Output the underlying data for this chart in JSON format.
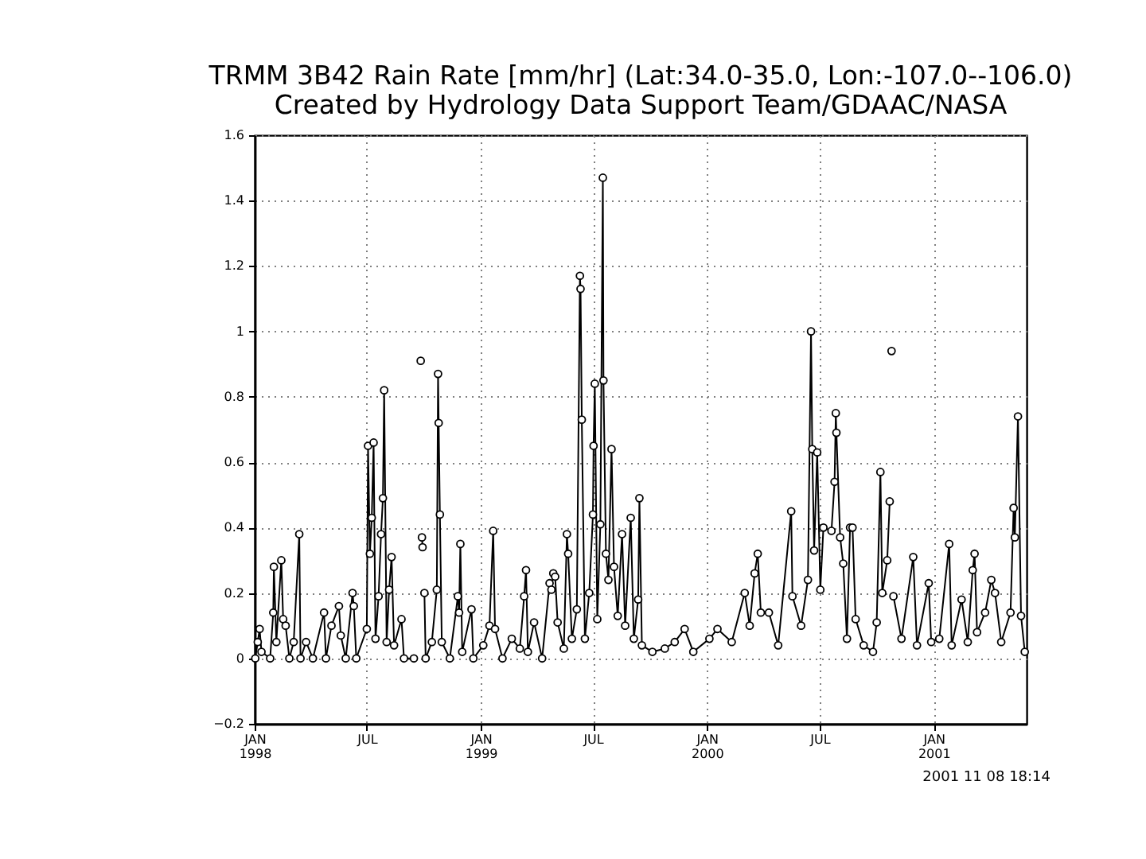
{
  "chart_data": {
    "type": "line",
    "title": "TRMM 3B42 Rain Rate [mm/hr] (Lat:34.0-35.0, Lon:-107.0--106.0)",
    "subtitle": "Created by Hydrology Data Support Team/GDAAC/NASA",
    "annotations": [
      "2001 11 08 18:14"
    ],
    "x": [
      "1998-01-02",
      "1998-01-06",
      "1998-01-09",
      "1998-01-12",
      "1998-01-26",
      "1998-01-31",
      "1998-02-01",
      "1998-02-05",
      "1998-02-13",
      "1998-02-16",
      "1998-02-20",
      "1998-02-26",
      "1998-03-05",
      "1998-03-14",
      "1998-03-16",
      "1998-03-25",
      "1998-04-05",
      "1998-04-23",
      "1998-04-26",
      "1998-05-05",
      "1998-05-17",
      "1998-05-20",
      "1998-05-28",
      "1998-06-08",
      "1998-06-10",
      "1998-06-14",
      "1998-07-01",
      "1998-07-03",
      "1998-07-06",
      "1998-07-09",
      "1998-07-12",
      "1998-07-15",
      "1998-07-20",
      "1998-07-24",
      "1998-07-27",
      "1998-07-29",
      "1998-08-02",
      "1998-08-06",
      "1998-08-10",
      "1998-08-14",
      "1998-08-26",
      "1998-08-30",
      "1998-09-15",
      "1998-09-24",
      "1998-09-26",
      "1998-09-27",
      "1998-09-28",
      "1998-09-29",
      "1998-09-30",
      "1998-10-02",
      "1998-10-04",
      "1998-10-14",
      "1998-10-22",
      "1998-10-24",
      "1998-10-25",
      "1998-10-27",
      "1998-10-30",
      "1998-11-12",
      "1998-11-25",
      "1998-11-27",
      "1998-11-29",
      "1998-12-02",
      "1998-12-17",
      "1998-12-20",
      "1999-01-05",
      "1999-01-15",
      "1999-01-21",
      "1999-01-24",
      "1999-02-05",
      "1999-02-20",
      "1999-03-05",
      "1999-03-12",
      "1999-03-15",
      "1999-03-18",
      "1999-03-28",
      "1999-04-10",
      "1999-04-22",
      "1999-04-25",
      "1999-04-28",
      "1999-05-01",
      "1999-05-05",
      "1999-05-15",
      "1999-05-20",
      "1999-05-22",
      "1999-05-28",
      "1999-06-05",
      "1999-06-10",
      "1999-06-11",
      "1999-06-13",
      "1999-06-18",
      "1999-06-25",
      "1999-07-01",
      "1999-07-02",
      "1999-07-04",
      "1999-07-08",
      "1999-07-13",
      "1999-07-17",
      "1999-07-18",
      "1999-07-22",
      "1999-07-26",
      "1999-07-31",
      "1999-08-04",
      "1999-08-10",
      "1999-08-17",
      "1999-08-22",
      "1999-08-31",
      "1999-09-05",
      "1999-09-12",
      "1999-09-14",
      "1999-09-18",
      "1999-10-05",
      "1999-10-25",
      "1999-11-10",
      "1999-11-26",
      "1999-12-10",
      "2000-01-05",
      "2000-01-18",
      "2000-02-10",
      "2000-03-02",
      "2000-03-10",
      "2000-03-18",
      "2000-03-23",
      "2000-03-28",
      "2000-04-10",
      "2000-04-25",
      "2000-05-16",
      "2000-05-18",
      "2000-06-01",
      "2000-06-12",
      "2000-06-17",
      "2000-06-19",
      "2000-06-22",
      "2000-06-27",
      "2000-07-02",
      "2000-07-07",
      "2000-07-20",
      "2000-07-25",
      "2000-07-27",
      "2000-07-28",
      "2000-08-03",
      "2000-08-08",
      "2000-08-14",
      "2000-08-19",
      "2000-08-23",
      "2000-08-28",
      "2000-09-10",
      "2000-09-25",
      "2000-10-01",
      "2000-10-07",
      "2000-10-10",
      "2000-10-18",
      "2000-10-22",
      "2000-10-24",
      "2000-10-25",
      "2000-10-26",
      "2000-10-28",
      "2000-11-10",
      "2000-11-29",
      "2000-12-05",
      "2000-12-24",
      "2000-12-28",
      "2001-01-10",
      "2001-01-26",
      "2001-01-30",
      "2001-02-15",
      "2001-02-25",
      "2001-03-05",
      "2001-03-08",
      "2001-03-12",
      "2001-03-25",
      "2001-04-04",
      "2001-04-10",
      "2001-04-20",
      "2001-05-05",
      "2001-05-10",
      "2001-05-12",
      "2001-05-17",
      "2001-05-22",
      "2001-05-28"
    ],
    "series": [
      {
        "color": "#000000",
        "values": [
          0,
          0.05,
          0.09,
          0.02,
          0,
          0.14,
          0.28,
          0.05,
          0.3,
          0.12,
          0.1,
          0,
          0.05,
          0.38,
          0,
          0.05,
          0,
          0.14,
          0,
          0.1,
          0.16,
          0.07,
          0,
          0.2,
          0.16,
          0,
          0.09,
          0.65,
          0.32,
          0.43,
          0.66,
          0.06,
          0.19,
          0.38,
          0.49,
          0.82,
          0.05,
          0.21,
          0.31,
          0.04,
          0.12,
          0,
          0,
          null,
          0.91,
          null,
          0.37,
          0.34,
          null,
          0.2,
          0,
          0.05,
          0.21,
          0.87,
          0.72,
          0.44,
          0.05,
          0,
          0.19,
          0.14,
          0.35,
          0.02,
          0.15,
          0,
          0.04,
          0.1,
          0.39,
          0.09,
          0,
          0.06,
          0.03,
          0.19,
          0.27,
          0.02,
          0.11,
          0,
          0.23,
          0.21,
          0.26,
          0.25,
          0.11,
          0.03,
          0.38,
          0.32,
          0.06,
          0.15,
          1.17,
          1.13,
          0.73,
          0.06,
          0.2,
          0.44,
          0.65,
          0.84,
          0.12,
          0.41,
          1.47,
          0.85,
          0.32,
          0.24,
          0.64,
          0.28,
          0.13,
          0.38,
          0.1,
          0.43,
          0.06,
          0.18,
          0.49,
          0.04,
          0.02,
          0.03,
          0.05,
          0.09,
          0.02,
          0.06,
          0.09,
          0.05,
          0.2,
          0.1,
          0.26,
          0.32,
          0.14,
          0.14,
          0.04,
          0.45,
          0.19,
          0.1,
          0.24,
          1.0,
          0.64,
          0.33,
          0.63,
          0.21,
          0.4,
          0.39,
          0.54,
          0.75,
          0.69,
          0.37,
          0.29,
          0.06,
          0.4,
          0.4,
          0.12,
          0.04,
          0.02,
          0.11,
          0.57,
          0.2,
          0.3,
          0.48,
          null,
          0.94,
          null,
          0.19,
          0.06,
          0.31,
          0.04,
          0.23,
          0.05,
          0.06,
          0.35,
          0.04,
          0.18,
          0.05,
          0.27,
          0.32,
          0.08,
          0.14,
          0.24,
          0.2,
          0.05,
          0.14,
          0.46,
          0.37,
          0.74,
          0.13,
          0.02
        ]
      }
    ],
    "xlim": [
      "1998-01-01",
      "2001-05-31"
    ],
    "xticks": [
      {
        "value": "1998-01",
        "label": "JAN 1998"
      },
      {
        "value": "1998-07",
        "label": "JUL"
      },
      {
        "value": "1999-01",
        "label": "JAN 1999"
      },
      {
        "value": "1999-07",
        "label": "JUL"
      },
      {
        "value": "2000-01",
        "label": "JAN 2000"
      },
      {
        "value": "2000-07",
        "label": "JUL"
      },
      {
        "value": "2001-01",
        "label": "JAN 2001"
      }
    ],
    "ylim": [
      -0.2,
      1.6
    ],
    "yticks": [
      -0.2,
      0,
      0.2,
      0.4,
      0.6,
      0.8,
      1,
      1.2,
      1.4,
      1.6
    ],
    "grid": true,
    "marker": "circle",
    "line_style": "solid"
  }
}
